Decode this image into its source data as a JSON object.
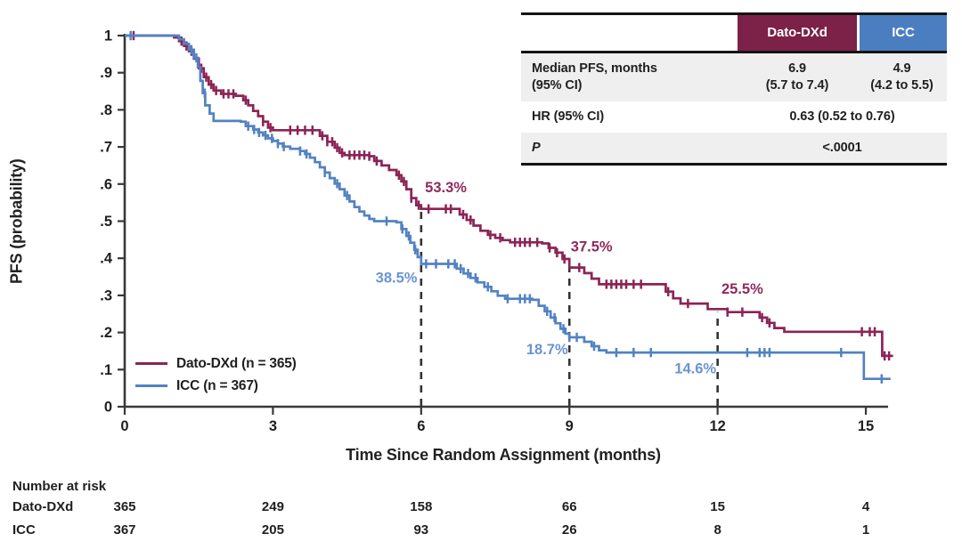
{
  "figure": {
    "colors": {
      "dato_line": "#8B2455",
      "icc_line": "#5282C3",
      "dato_annotation": "#8F2A5C",
      "icc_annotation": "#6B94D3",
      "dato_header_bg": "#7C2148",
      "icc_header_bg": "#4A7EC1",
      "row_gray_bg": "#EFEFEF",
      "axis": "#383838",
      "dash_line": "#333333",
      "text": "#1F1F1F"
    }
  },
  "chart_data": {
    "type": "line",
    "subtype": "kaplan-meier-step",
    "title": "",
    "xlabel": "Time Since Random Assignment (months)",
    "ylabel": "PFS (probability)",
    "xlim": [
      0,
      15.6
    ],
    "ylim": [
      0,
      1
    ],
    "xticks": [
      0,
      3,
      6,
      9,
      12,
      15
    ],
    "yticks": [
      {
        "v": 0,
        "label": "0"
      },
      {
        "v": 0.1,
        "label": ".1"
      },
      {
        "v": 0.2,
        "label": ".2"
      },
      {
        "v": 0.3,
        "label": ".3"
      },
      {
        "v": 0.4,
        "label": ".4"
      },
      {
        "v": 0.5,
        "label": ".5"
      },
      {
        "v": 0.6,
        "label": ".6"
      },
      {
        "v": 0.7,
        "label": ".7"
      },
      {
        "v": 0.8,
        "label": ".8"
      },
      {
        "v": 0.9,
        "label": ".9"
      },
      {
        "v": 1,
        "label": "1"
      }
    ],
    "grid": false,
    "legend_position": "inside-lower-left",
    "series": [
      {
        "key": "dato",
        "name": "Dato-DXd (n = 365)",
        "color": "#8B2455",
        "steps": [
          [
            0,
            1
          ],
          [
            0.9,
            1
          ],
          [
            1.0,
            0.995
          ],
          [
            1.1,
            0.985
          ],
          [
            1.2,
            0.972
          ],
          [
            1.3,
            0.958
          ],
          [
            1.4,
            0.938
          ],
          [
            1.5,
            0.912
          ],
          [
            1.6,
            0.888
          ],
          [
            1.7,
            0.868
          ],
          [
            1.8,
            0.852
          ],
          [
            1.95,
            0.843
          ],
          [
            2.25,
            0.838
          ],
          [
            2.4,
            0.826
          ],
          [
            2.5,
            0.812
          ],
          [
            2.6,
            0.797
          ],
          [
            2.7,
            0.783
          ],
          [
            2.8,
            0.768
          ],
          [
            2.9,
            0.752
          ],
          [
            3.0,
            0.745
          ],
          [
            3.85,
            0.745
          ],
          [
            3.95,
            0.73
          ],
          [
            4.1,
            0.714
          ],
          [
            4.25,
            0.698
          ],
          [
            4.35,
            0.684
          ],
          [
            4.45,
            0.678
          ],
          [
            4.95,
            0.675
          ],
          [
            5.05,
            0.662
          ],
          [
            5.2,
            0.65
          ],
          [
            5.35,
            0.638
          ],
          [
            5.5,
            0.624
          ],
          [
            5.6,
            0.607
          ],
          [
            5.7,
            0.586
          ],
          [
            5.8,
            0.562
          ],
          [
            5.9,
            0.543
          ],
          [
            6.0,
            0.533
          ],
          [
            6.65,
            0.533
          ],
          [
            6.78,
            0.518
          ],
          [
            6.92,
            0.503
          ],
          [
            7.06,
            0.488
          ],
          [
            7.2,
            0.474
          ],
          [
            7.35,
            0.463
          ],
          [
            7.5,
            0.455
          ],
          [
            7.65,
            0.449
          ],
          [
            7.8,
            0.443
          ],
          [
            8.45,
            0.44
          ],
          [
            8.58,
            0.428
          ],
          [
            8.72,
            0.415
          ],
          [
            8.86,
            0.398
          ],
          [
            9.0,
            0.375
          ],
          [
            9.3,
            0.36
          ],
          [
            9.45,
            0.345
          ],
          [
            9.6,
            0.33
          ],
          [
            10.8,
            0.33
          ],
          [
            10.95,
            0.31
          ],
          [
            11.1,
            0.292
          ],
          [
            11.25,
            0.278
          ],
          [
            11.8,
            0.263
          ],
          [
            12.2,
            0.255
          ],
          [
            12.85,
            0.24
          ],
          [
            13.0,
            0.226
          ],
          [
            13.15,
            0.212
          ],
          [
            13.35,
            0.202
          ],
          [
            15.28,
            0.202
          ],
          [
            15.33,
            0.137
          ],
          [
            15.55,
            0.137
          ]
        ],
        "censor_times": [
          0.18,
          1.15,
          1.25,
          1.35,
          1.55,
          1.65,
          1.75,
          1.85,
          2.0,
          2.1,
          2.2,
          2.45,
          2.8,
          2.95,
          3.35,
          3.5,
          3.65,
          3.8,
          4.0,
          4.1,
          4.2,
          4.3,
          4.4,
          4.55,
          4.65,
          4.75,
          4.85,
          4.95,
          5.1,
          5.55,
          5.65,
          5.8,
          5.95,
          6.15,
          6.5,
          6.6,
          6.85,
          7.0,
          7.4,
          7.6,
          7.9,
          8.0,
          8.1,
          8.2,
          8.35,
          8.6,
          8.75,
          8.9,
          9.2,
          9.75,
          9.85,
          9.95,
          10.05,
          10.15,
          10.3,
          10.45,
          11.0,
          11.4,
          12.2,
          12.5,
          12.9,
          13.05,
          14.92,
          15.08,
          15.18,
          15.38,
          15.47
        ],
        "milestone_values": {
          "6": "53.3%",
          "9": "37.5%",
          "12": "25.5%"
        }
      },
      {
        "key": "icc",
        "name": "ICC (n = 367)",
        "color": "#5282C3",
        "steps": [
          [
            0,
            1
          ],
          [
            1.0,
            1
          ],
          [
            1.1,
            0.99
          ],
          [
            1.2,
            0.978
          ],
          [
            1.3,
            0.962
          ],
          [
            1.4,
            0.94
          ],
          [
            1.48,
            0.915
          ],
          [
            1.53,
            0.878
          ],
          [
            1.58,
            0.845
          ],
          [
            1.63,
            0.812
          ],
          [
            1.72,
            0.79
          ],
          [
            1.8,
            0.77
          ],
          [
            2.35,
            0.768
          ],
          [
            2.45,
            0.756
          ],
          [
            2.6,
            0.747
          ],
          [
            2.7,
            0.739
          ],
          [
            2.8,
            0.731
          ],
          [
            2.9,
            0.723
          ],
          [
            3.0,
            0.716
          ],
          [
            3.1,
            0.709
          ],
          [
            3.2,
            0.701
          ],
          [
            3.35,
            0.695
          ],
          [
            3.55,
            0.689
          ],
          [
            3.65,
            0.681
          ],
          [
            3.75,
            0.671
          ],
          [
            3.85,
            0.659
          ],
          [
            3.95,
            0.645
          ],
          [
            4.05,
            0.631
          ],
          [
            4.15,
            0.616
          ],
          [
            4.25,
            0.601
          ],
          [
            4.35,
            0.586
          ],
          [
            4.45,
            0.569
          ],
          [
            4.55,
            0.553
          ],
          [
            4.65,
            0.538
          ],
          [
            4.75,
            0.526
          ],
          [
            4.85,
            0.515
          ],
          [
            4.95,
            0.506
          ],
          [
            5.05,
            0.5
          ],
          [
            5.5,
            0.497
          ],
          [
            5.6,
            0.479
          ],
          [
            5.7,
            0.46
          ],
          [
            5.78,
            0.442
          ],
          [
            5.86,
            0.423
          ],
          [
            5.93,
            0.403
          ],
          [
            6.0,
            0.385
          ],
          [
            6.6,
            0.385
          ],
          [
            6.72,
            0.372
          ],
          [
            6.86,
            0.359
          ],
          [
            7.0,
            0.347
          ],
          [
            7.14,
            0.335
          ],
          [
            7.28,
            0.323
          ],
          [
            7.42,
            0.311
          ],
          [
            7.55,
            0.299
          ],
          [
            7.7,
            0.291
          ],
          [
            8.25,
            0.288
          ],
          [
            8.38,
            0.272
          ],
          [
            8.5,
            0.257
          ],
          [
            8.62,
            0.24
          ],
          [
            8.72,
            0.225
          ],
          [
            8.82,
            0.21
          ],
          [
            8.92,
            0.197
          ],
          [
            9.0,
            0.187
          ],
          [
            9.3,
            0.175
          ],
          [
            9.45,
            0.163
          ],
          [
            9.6,
            0.152
          ],
          [
            9.75,
            0.146
          ],
          [
            14.9,
            0.146
          ],
          [
            14.96,
            0.075
          ],
          [
            15.5,
            0.075
          ]
        ],
        "censor_times": [
          0.12,
          1.35,
          1.45,
          1.62,
          2.5,
          2.62,
          2.72,
          2.85,
          2.98,
          3.1,
          3.22,
          3.55,
          3.68,
          4.05,
          4.3,
          4.5,
          5.3,
          5.62,
          5.75,
          5.88,
          6.1,
          6.3,
          6.55,
          6.68,
          6.8,
          6.95,
          7.1,
          7.35,
          7.75,
          8.0,
          8.1,
          8.2,
          8.55,
          8.7,
          8.88,
          9.0,
          9.15,
          9.5,
          9.95,
          10.3,
          10.65,
          12.6,
          12.85,
          12.95,
          13.05,
          14.5,
          15.32
        ],
        "milestone_values": {
          "6": "38.5%",
          "9": "18.7%",
          "12": "14.6%"
        }
      }
    ],
    "milestone_lines": [
      {
        "x": 6,
        "top": 0.533
      },
      {
        "x": 9,
        "top": 0.375
      },
      {
        "x": 12,
        "top": 0.255
      }
    ],
    "annotations": [
      {
        "text": "53.3%",
        "series": "dato",
        "x": 6.5,
        "y": 0.578
      },
      {
        "text": "37.5%",
        "series": "dato",
        "x": 9.45,
        "y": 0.418
      },
      {
        "text": "25.5%",
        "series": "dato",
        "x": 12.5,
        "y": 0.305
      },
      {
        "text": "38.5%",
        "series": "icc",
        "x": 5.5,
        "y": 0.335
      },
      {
        "text": "18.7%",
        "series": "icc",
        "x": 8.55,
        "y": 0.142
      },
      {
        "text": "14.6%",
        "series": "icc",
        "x": 11.55,
        "y": 0.09
      }
    ],
    "risk_table": {
      "title": "Number at risk",
      "times": [
        0,
        3,
        6,
        9,
        12,
        15
      ],
      "rows": [
        {
          "label": "Dato-DXd",
          "values": [
            "365",
            "249",
            "158",
            "66",
            "15",
            "4"
          ]
        },
        {
          "label": "ICC",
          "values": [
            "367",
            "205",
            "93",
            "26",
            "8",
            "1"
          ]
        }
      ]
    }
  },
  "stats_table": {
    "col_headers": [
      "Dato-DXd",
      "ICC"
    ],
    "rows": [
      {
        "label": "Median PFS, months\n(95% CI)",
        "dato": "6.9\n(5.7 to 7.4)",
        "icc": "4.9\n(4.2 to 5.5)"
      },
      {
        "label": "HR (95% CI)",
        "value": "0.63 (0.52 to 0.76)"
      },
      {
        "label": "P",
        "value": "<.0001"
      }
    ]
  }
}
